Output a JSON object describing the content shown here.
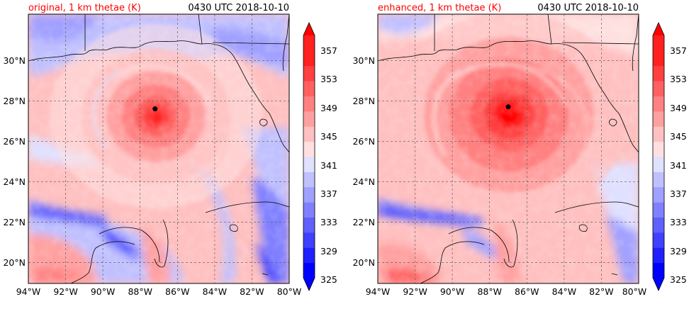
{
  "colors": {
    "title_left": "#ff0000",
    "title_right": "#000000",
    "colormap": [
      "#0000ff",
      "#2020ff",
      "#4040ff",
      "#6060ff",
      "#8080ff",
      "#a0a0ff",
      "#c0c0ff",
      "#e0e0ff",
      "#ffffff",
      "#ffe0e0",
      "#ffc0c0",
      "#ffa0a0",
      "#ff8080",
      "#ff6060",
      "#ff4040",
      "#ff2020",
      "#ff0000"
    ],
    "storm_marker": "#000000",
    "coastline": "#000000",
    "gridline": "#555555"
  },
  "panels": [
    {
      "title": "original, 1 km thetae (K)",
      "timestamp": "0430 UTC 2018-10-10",
      "storm_center": {
        "lon": -87.2,
        "lat": 27.15
      },
      "storm_peak_level": 15,
      "colorbar_label_levels": [
        "325",
        "329",
        "333",
        "337",
        "341",
        "345",
        "349",
        "353",
        "357"
      ]
    },
    {
      "title": "enhanced, 1 km thetae (K)",
      "timestamp": "0430 UTC 2018-10-10",
      "storm_center": {
        "lon": -87.0,
        "lat": 27.25
      },
      "storm_peak_level": 16,
      "colorbar_label_levels": [
        "325",
        "329",
        "333",
        "337",
        "341",
        "345",
        "349",
        "353",
        "357"
      ]
    }
  ],
  "map_extent": {
    "lon_min": -94,
    "lon_max": -80,
    "lat_min": 18.2,
    "lat_max": 32
  },
  "lon_ticks": [
    "94°W",
    "92°W",
    "90°W",
    "88°W",
    "86°W",
    "84°W",
    "82°W",
    "80°W"
  ],
  "lat_ticks": [
    "20°N",
    "22°N",
    "24°N",
    "26°N",
    "28°N",
    "30°N"
  ],
  "colorbar_levels": [
    325,
    327,
    329,
    331,
    333,
    335,
    337,
    339,
    341,
    343,
    345,
    347,
    349,
    351,
    353,
    355,
    357,
    359
  ]
}
